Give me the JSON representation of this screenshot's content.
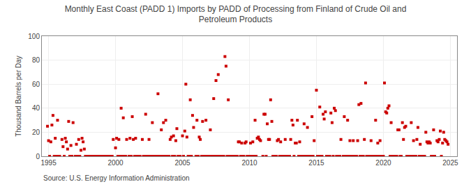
{
  "chart_data": {
    "type": "scatter",
    "title": "Monthly East Coast (PADD 1) Imports by PADD of Processing from Finland of Crude Oil and\nPetroleum Products",
    "ylabel": "Thousand Barrels per Day",
    "annotations": [
      "Source: U.S. Energy Information Administration"
    ],
    "xlim": [
      1994.5,
      2025.5
    ],
    "ylim": [
      0,
      100
    ],
    "xticks": [
      1995,
      2000,
      2005,
      2010,
      2015,
      2020,
      2025
    ],
    "yticks": [
      0,
      20,
      40,
      60,
      80,
      100
    ],
    "grid": true,
    "color": "#cc0000",
    "marker": "square",
    "x": [
      1994.92,
      1995.0,
      1995.08,
      1995.17,
      1995.25,
      1995.33,
      1995.42,
      1995.5,
      1995.58,
      1995.67,
      1995.75,
      1995.83,
      1996.0,
      1996.08,
      1996.17,
      1996.25,
      1996.33,
      1996.42,
      1996.5,
      1996.58,
      1996.67,
      1996.75,
      1996.83,
      1997.0,
      1997.08,
      1997.17,
      1997.25,
      1997.33,
      1997.42,
      1997.5,
      1997.58,
      1997.67,
      1997.75,
      1997.83,
      1998.0,
      1998.08,
      1998.17,
      1998.25,
      1998.33,
      1998.42,
      1998.5,
      1998.58,
      1998.67,
      1998.75,
      1998.83,
      1999.0,
      1999.08,
      1999.17,
      1999.25,
      1999.33,
      1999.42,
      1999.5,
      1999.58,
      1999.67,
      1999.75,
      1999.83,
      2000.0,
      2000.08,
      2000.17,
      2000.25,
      2000.33,
      2000.42,
      2000.5,
      2000.58,
      2000.67,
      2000.75,
      2000.83,
      2001.0,
      2001.08,
      2001.17,
      2001.25,
      2001.33,
      2001.42,
      2001.5,
      2001.58,
      2001.67,
      2001.75,
      2001.83,
      2002.0,
      2002.08,
      2002.17,
      2002.25,
      2002.33,
      2002.42,
      2002.5,
      2002.58,
      2002.67,
      2002.75,
      2002.83,
      2003.0,
      2003.08,
      2003.17,
      2003.25,
      2003.33,
      2003.42,
      2003.5,
      2003.58,
      2003.67,
      2003.75,
      2003.83,
      2004.0,
      2004.08,
      2004.17,
      2004.25,
      2004.33,
      2004.42,
      2004.5,
      2004.58,
      2004.67,
      2004.75,
      2004.83,
      2005.0,
      2005.08,
      2005.17,
      2005.25,
      2005.33,
      2005.42,
      2005.5,
      2005.58,
      2005.67,
      2005.75,
      2005.83,
      2006.0,
      2006.08,
      2006.17,
      2006.25,
      2006.33,
      2006.42,
      2006.5,
      2006.58,
      2006.67,
      2006.75,
      2006.83,
      2007.0,
      2007.08,
      2007.17,
      2007.25,
      2007.33,
      2007.42,
      2007.5,
      2007.58,
      2007.67,
      2007.75,
      2007.83,
      2008.0,
      2008.08,
      2008.17,
      2008.25,
      2008.33,
      2008.42,
      2008.5,
      2008.58,
      2008.67,
      2008.75,
      2008.83,
      2009.0,
      2009.08,
      2009.17,
      2009.25,
      2009.33,
      2009.42,
      2009.5,
      2009.58,
      2009.67,
      2009.75,
      2009.83,
      2010.0,
      2010.08,
      2010.17,
      2010.25,
      2010.33,
      2010.42,
      2010.5,
      2010.58,
      2010.67,
      2010.75,
      2010.83,
      2011.0,
      2011.08,
      2011.17,
      2011.25,
      2011.33,
      2011.42,
      2011.5,
      2011.58,
      2011.67,
      2011.75,
      2011.83,
      2012.0,
      2012.08,
      2012.17,
      2012.25,
      2012.33,
      2012.42,
      2012.5,
      2012.58,
      2012.67,
      2012.75,
      2012.83,
      2013.0,
      2013.08,
      2013.17,
      2013.25,
      2013.33,
      2013.42,
      2013.5,
      2013.58,
      2013.67,
      2013.75,
      2013.83,
      2014.0,
      2014.08,
      2014.17,
      2014.25,
      2014.33,
      2014.42,
      2014.5,
      2014.58,
      2014.67,
      2014.75,
      2014.83,
      2015.0,
      2015.08,
      2015.17,
      2015.25,
      2015.33,
      2015.42,
      2015.5,
      2015.58,
      2015.67,
      2015.75,
      2015.83,
      2016.0,
      2016.08,
      2016.17,
      2016.25,
      2016.33,
      2016.42,
      2016.5,
      2016.58,
      2016.67,
      2016.75,
      2016.83,
      2017.0,
      2017.08,
      2017.17,
      2017.25,
      2017.33,
      2017.42,
      2017.5,
      2017.58,
      2017.67,
      2017.75,
      2017.83,
      2018.0,
      2018.08,
      2018.17,
      2018.25,
      2018.33,
      2018.42,
      2018.5,
      2018.58,
      2018.67,
      2018.75,
      2018.83,
      2019.0,
      2019.08,
      2019.17,
      2019.25,
      2019.33,
      2019.42,
      2019.5,
      2019.58,
      2019.67,
      2019.75,
      2019.83,
      2020.0,
      2020.08,
      2020.17,
      2020.25,
      2020.33,
      2020.42,
      2020.5,
      2020.58,
      2020.67,
      2020.75,
      2020.83,
      2021.0,
      2021.08,
      2021.17,
      2021.25,
      2021.33,
      2021.42,
      2021.5,
      2021.58,
      2021.67,
      2021.75,
      2021.83,
      2022.0,
      2022.08,
      2022.17,
      2022.25,
      2022.33,
      2022.42,
      2022.5,
      2022.58,
      2022.67,
      2022.75,
      2022.83,
      2023.0,
      2023.08,
      2023.17,
      2023.25,
      2023.33,
      2023.42,
      2023.5,
      2023.58,
      2023.67,
      2023.75,
      2023.83,
      2024.0,
      2024.08,
      2024.17,
      2024.25,
      2024.33,
      2024.42,
      2024.5,
      2024.58,
      2024.67,
      2024.75,
      2024.83
    ],
    "values": [
      25,
      13,
      0,
      12,
      26,
      34,
      0,
      15,
      0,
      30,
      0,
      0,
      14,
      8,
      0,
      15,
      12,
      6,
      29,
      0,
      9,
      0,
      28,
      0,
      10,
      0,
      14,
      0,
      5,
      15,
      12,
      6,
      0,
      0,
      0,
      0,
      0,
      0,
      0,
      0,
      0,
      0,
      0,
      0,
      0,
      0,
      0,
      0,
      0,
      0,
      0,
      0,
      0,
      0,
      0,
      14,
      7,
      15,
      0,
      14,
      0,
      40,
      0,
      32,
      0,
      0,
      14,
      0,
      15,
      0,
      33,
      14,
      0,
      15,
      0,
      0,
      0,
      0,
      14,
      0,
      0,
      35,
      0,
      0,
      14,
      0,
      0,
      28,
      0,
      0,
      0,
      52,
      0,
      0,
      22,
      0,
      28,
      0,
      30,
      0,
      0,
      14,
      16,
      0,
      17,
      0,
      13,
      23,
      0,
      0,
      0,
      17,
      0,
      21,
      60,
      16,
      0,
      0,
      47,
      0,
      34,
      24,
      0,
      30,
      0,
      16,
      14,
      0,
      29,
      0,
      0,
      30,
      0,
      0,
      22,
      0,
      0,
      48,
      0,
      63,
      0,
      68,
      0,
      0,
      0,
      0,
      83,
      75,
      0,
      47,
      0,
      0,
      0,
      0,
      0,
      0,
      0,
      12,
      12,
      0,
      11,
      0,
      0,
      11,
      12,
      0,
      0,
      11,
      0,
      12,
      0,
      30,
      0,
      15,
      16,
      14,
      13,
      0,
      35,
      35,
      0,
      27,
      14,
      14,
      47,
      29,
      0,
      0,
      0,
      13,
      14,
      0,
      12,
      0,
      0,
      0,
      14,
      0,
      0,
      0,
      14,
      30,
      26,
      0,
      11,
      11,
      30,
      0,
      12,
      0,
      0,
      27,
      0,
      0,
      24,
      0,
      0,
      0,
      33,
      0,
      13,
      55,
      0,
      0,
      41,
      0,
      0,
      35,
      31,
      37,
      0,
      0,
      0,
      36,
      28,
      0,
      40,
      38,
      0,
      0,
      0,
      0,
      14,
      0,
      33,
      0,
      0,
      30,
      0,
      13,
      0,
      0,
      13,
      0,
      0,
      13,
      43,
      0,
      44,
      0,
      0,
      14,
      61,
      0,
      0,
      0,
      13,
      0,
      0,
      0,
      30,
      0,
      11,
      0,
      13,
      0,
      0,
      61,
      37,
      36,
      40,
      42,
      0,
      28,
      0,
      0,
      0,
      0,
      22,
      22,
      0,
      0,
      28,
      14,
      24,
      25,
      0,
      0,
      0,
      28,
      0,
      13,
      0,
      0,
      14,
      24,
      0,
      10,
      0,
      0,
      0,
      20,
      12,
      11,
      12,
      11,
      0,
      0,
      22,
      0,
      13,
      12,
      14,
      21,
      0,
      11,
      20,
      14,
      13,
      12,
      10
    ]
  }
}
